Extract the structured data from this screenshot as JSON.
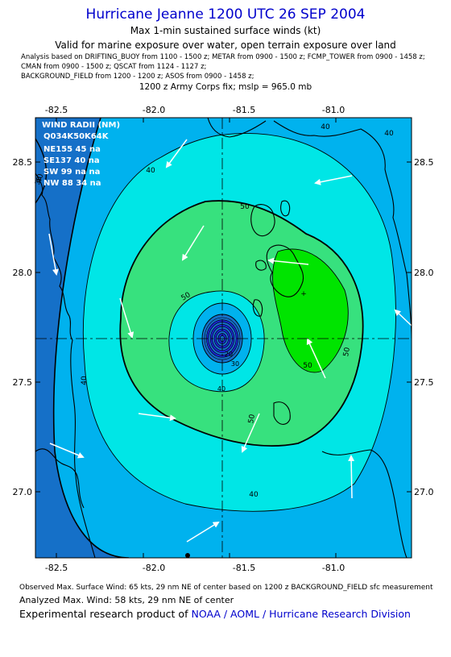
{
  "title": "Hurricane Jeanne 1200 UTC 26 SEP 2004",
  "subtitle": "Max 1-min sustained surface winds (kt)",
  "valid_line": "Valid for marine exposure over water, open terrain exposure over land",
  "analysis_lines": [
    "Analysis based on  DRIFTING_BUOY from 1100 - 1500 z;  METAR from 0900 - 1500 z;  FCMP_TOWER from 0900 - 1458 z;",
    "CMAN from 0900 - 1500 z;  QSCAT from 1124 - 1127 z;",
    "BACKGROUND_FIELD from 1200 - 1200 z;  ASOS from 0900 - 1458 z;"
  ],
  "fix_line": "1200 z Army Corps fix; mslp = 965.0 mb",
  "map": {
    "lon_ticks": [
      "-82.5",
      "-82.0",
      "-81.5",
      "-81.0"
    ],
    "lat_ticks": [
      "28.5",
      "28.0",
      "27.5",
      "27.0"
    ],
    "contour_labels": [
      "40",
      "40",
      "50",
      "50",
      "50",
      "40",
      "40",
      "50",
      "40",
      "50",
      "40",
      "20",
      "30",
      "40",
      "30"
    ],
    "center": {
      "lon": -81.6,
      "lat": 27.7
    }
  },
  "wind_radii": {
    "title": "WIND RADII (NM)",
    "header": "Q034K50K64K",
    "rows": [
      "NE155 45 na",
      "SE137 40 na",
      "SW 99 na na",
      "NW 88 34 na"
    ]
  },
  "colors": {
    "c_lt30": "#1570c8",
    "c_30_40": "#00b2ee",
    "c_40_50": "#00e6e6",
    "c_50_60": "#37e17e",
    "c_60_70": "#00e400",
    "c_eye": "#1b27d0"
  },
  "footer": {
    "observed": "Observed Max. Surface Wind: 65 kts, 29 nm NE of center based on 1200 z BACKGROUND_FIELD sfc measurement",
    "analyzed": "Analyzed Max. Wind: 58 kts, 29 nm NE of center",
    "research_prefix": "Experimental research product of",
    "research_org": "NOAA / AOML / Hurricane Research Division"
  }
}
